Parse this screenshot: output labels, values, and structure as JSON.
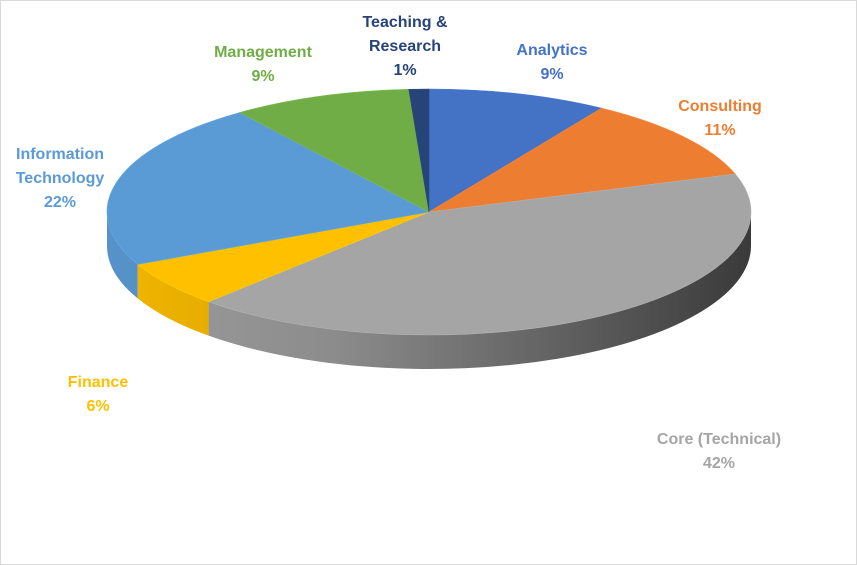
{
  "chart_data": {
    "type": "pie",
    "title": "",
    "style": "3d",
    "slices": [
      {
        "label_lines": [
          "Analytics"
        ],
        "value": 9,
        "value_label": "9%",
        "color": "#4472c4",
        "label_color": "#4472c4"
      },
      {
        "label_lines": [
          "Consulting"
        ],
        "value": 11,
        "value_label": "11%",
        "color": "#ed7d31",
        "label_color": "#ed7d31"
      },
      {
        "label_lines": [
          "Core (Technical)"
        ],
        "value": 42,
        "value_label": "42%",
        "color": "#a5a5a5",
        "label_color": "#a5a5a5"
      },
      {
        "label_lines": [
          "Finance"
        ],
        "value": 6,
        "value_label": "6%",
        "color": "#ffc000",
        "label_color": "#ffc000"
      },
      {
        "label_lines": [
          "Information",
          "Technology"
        ],
        "value": 22,
        "value_label": "22%",
        "color": "#5b9bd5",
        "label_color": "#5b9bd5"
      },
      {
        "label_lines": [
          "Management"
        ],
        "value": 9,
        "value_label": "9%",
        "color": "#70ad47",
        "label_color": "#70ad47"
      },
      {
        "label_lines": [
          "Teaching &",
          "Research"
        ],
        "value": 1,
        "value_label": "1%",
        "color": "#264478",
        "label_color": "#264478"
      }
    ]
  }
}
